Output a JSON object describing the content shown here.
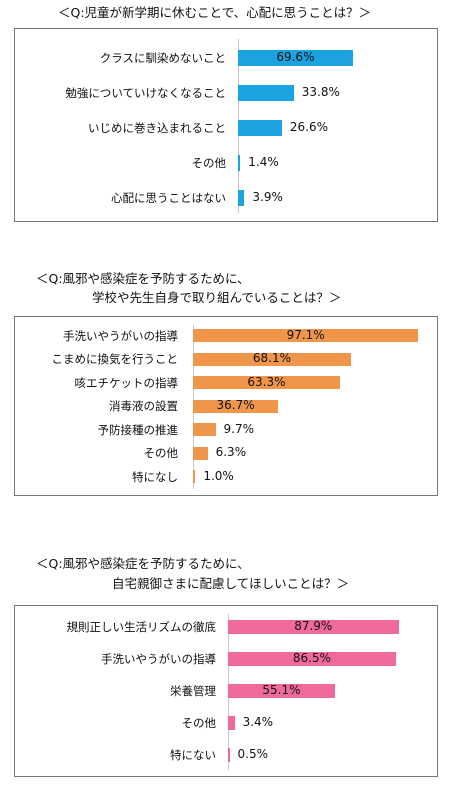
{
  "chart_data": [
    {
      "type": "bar",
      "title": "＜Q:児童が新学期に休むことで、心配に思うことは？＞",
      "categories": [
        "クラスに馴染めないこと",
        "勉強についていけなくなること",
        "いじめに巻き込まれること",
        "その他",
        "心配に思うことはない"
      ],
      "values": [
        69.6,
        33.8,
        26.6,
        1.4,
        3.9
      ],
      "value_labels": [
        "69.6%",
        "33.8%",
        "26.6%",
        "1.4%",
        "3.9%"
      ],
      "color": "#1aa3e0",
      "xlim": [
        0,
        100
      ]
    },
    {
      "type": "bar",
      "title": "＜Q:風邪や感染症を予防するために、",
      "title_line2": "学校や先生自身で取り組んでいることは？＞",
      "categories": [
        "手洗いやうがいの指導",
        "こまめに換気を行うこと",
        "咳エチケットの指導",
        "消毒液の設置",
        "予防接種の推進",
        "その他",
        "特になし"
      ],
      "values": [
        97.1,
        68.1,
        63.3,
        36.7,
        9.7,
        6.3,
        1.0
      ],
      "value_labels": [
        "97.1%",
        "68.1%",
        "63.3%",
        "36.7%",
        "9.7%",
        "6.3%",
        "1.0%"
      ],
      "color": "#f0964a",
      "xlim": [
        0,
        100
      ]
    },
    {
      "type": "bar",
      "title": "＜Q:風邪や感染症を予防するために、",
      "title_line2": "自宅親御さまに配慮してほしいことは？＞",
      "categories": [
        "規則正しい生活リズムの徹底",
        "手洗いやうがいの指導",
        "栄養管理",
        "その他",
        "特にない"
      ],
      "values": [
        87.9,
        86.5,
        55.1,
        3.4,
        0.5
      ],
      "value_labels": [
        "87.9%",
        "86.5%",
        "55.1%",
        "3.4%",
        "0.5%"
      ],
      "color": "#ef6a9a",
      "xlim": [
        0,
        100
      ]
    }
  ]
}
